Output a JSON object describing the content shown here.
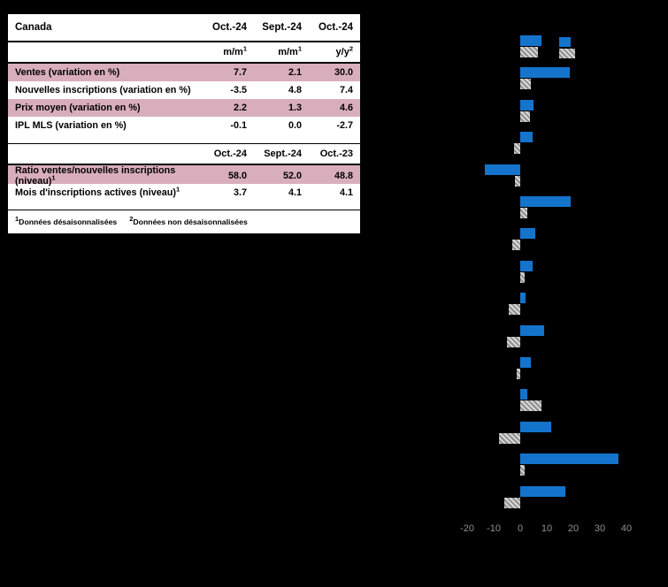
{
  "page": {
    "background": "#000000"
  },
  "table": {
    "title": "Canada",
    "highlight_color": "#d9aebc",
    "header1": [
      "Oct.-24",
      "Sept.-24",
      "Oct.-24"
    ],
    "subheader": [
      {
        "base": "m/m",
        "sup": "1"
      },
      {
        "base": "m/m",
        "sup": "1"
      },
      {
        "base": "y/y",
        "sup": "2"
      }
    ],
    "rows1": [
      {
        "label": "Ventes (variation en %)",
        "sup": "",
        "values": [
          "7.7",
          "2.1",
          "30.0"
        ],
        "highlight": true
      },
      {
        "label": "Nouvelles inscriptions (variation en %)",
        "sup": "",
        "values": [
          "-3.5",
          "4.8",
          "7.4"
        ],
        "highlight": false
      },
      {
        "label": "Prix moyen (variation en %)",
        "sup": "",
        "values": [
          "2.2",
          "1.3",
          "4.6"
        ],
        "highlight": true
      },
      {
        "label": "IPL MLS (variation en %)",
        "sup": "",
        "values": [
          "-0.1",
          "0.0",
          "-2.7"
        ],
        "highlight": false
      }
    ],
    "header2": [
      "Oct.-24",
      "Sept.-24",
      "Oct.-23"
    ],
    "rows2": [
      {
        "label": "Ratio ventes/nouvelles inscriptions (niveau)",
        "sup": "1",
        "values": [
          "58.0",
          "52.0",
          "48.8"
        ],
        "highlight": true
      },
      {
        "label": "Mois d'inscriptions actives (niveau)",
        "sup": "1",
        "values": [
          "3.7",
          "4.1",
          "4.1"
        ],
        "highlight": false
      }
    ],
    "footnotes": [
      {
        "sup": "1",
        "text": "Données désaisonnalisées"
      },
      {
        "sup": "2",
        "text": "Données non désaisonnalisées"
      }
    ]
  },
  "chart_data": {
    "type": "bar",
    "orientation": "horizontal",
    "title": "",
    "xlabel": "",
    "ylabel": "",
    "xlim": [
      -20,
      40
    ],
    "x_ticks": [
      -20,
      -10,
      0,
      10,
      20,
      30,
      40
    ],
    "grid": false,
    "legend_position": "top-right",
    "legend_labels_visible": "",
    "categories": [
      "",
      "",
      "",
      "",
      "",
      "",
      "",
      "",
      "",
      "",
      "",
      "",
      "",
      "",
      ""
    ],
    "series": [
      {
        "name": "serie-bleue",
        "color": "#1474cc",
        "values": [
          8,
          18.5,
          5,
          4.5,
          -13.5,
          19,
          5.5,
          4.5,
          2,
          9,
          4,
          2.5,
          11.5,
          37,
          17
        ]
      },
      {
        "name": "serie-grise-hachuree",
        "color": "#bdbdbd",
        "pattern": "diagonal-hatch",
        "values": [
          6.5,
          4,
          3.5,
          -2.5,
          -2,
          2.5,
          -3,
          1.5,
          -4.5,
          -5,
          -1.5,
          8,
          -8,
          1.5,
          -6
        ]
      }
    ],
    "axis_label_color": "#8f8f8f"
  }
}
